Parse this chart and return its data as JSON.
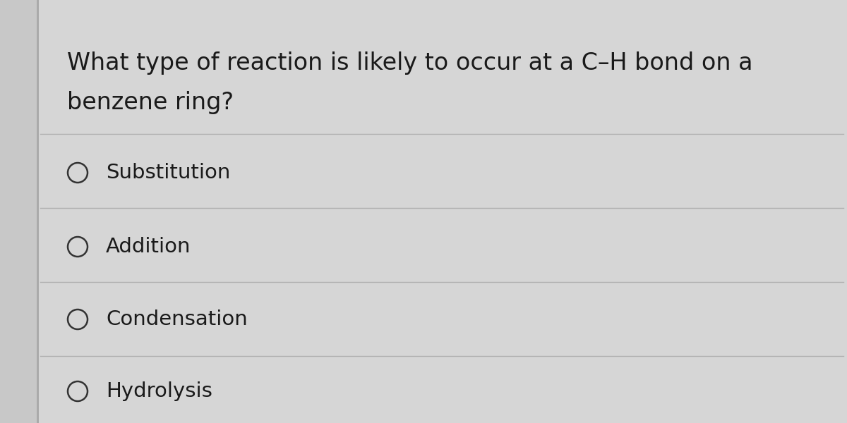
{
  "question_line1": "What type of reaction is likely to occur at a C–H bond on a",
  "question_line2": "benzene ring?",
  "options": [
    "Substitution",
    "Addition",
    "Condensation",
    "Hydrolysis"
  ],
  "background_color": "#c8c8c8",
  "card_color": "#d6d6d6",
  "text_color": "#1a1a1a",
  "line_color": "#b0b0b0",
  "left_bar_color": "#aaaaaa",
  "question_fontsize": 24,
  "option_fontsize": 21,
  "circle_color": "#333333",
  "circle_linewidth": 1.8,
  "circle_size": 14
}
